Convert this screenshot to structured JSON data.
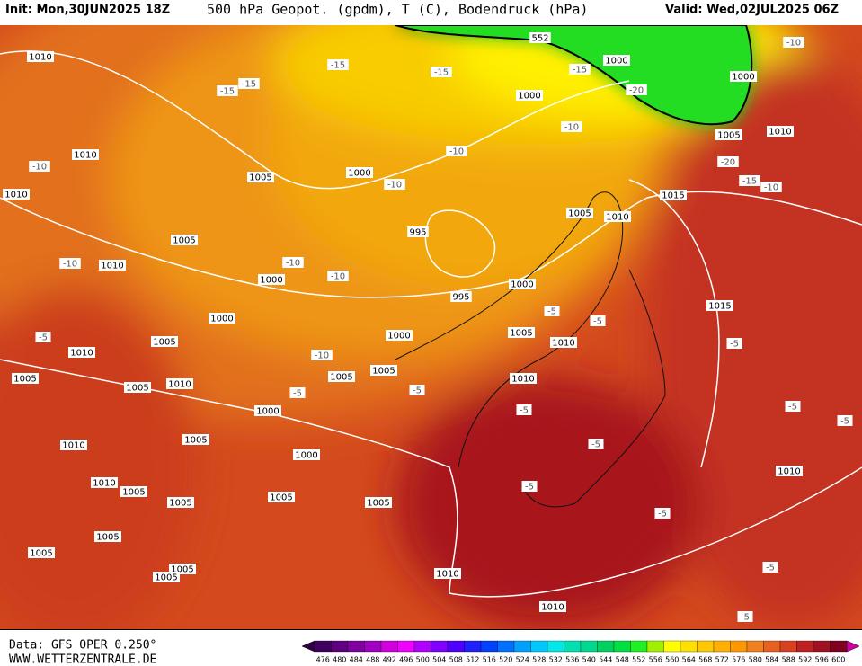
{
  "header": {
    "init": "Init: Mon,30JUN2025 18Z",
    "title": "500 hPa Geopot. (gpdm), T (C), Bodendruck (hPa)",
    "valid": "Valid: Wed,02JUL2025 06Z"
  },
  "footer": {
    "data": "Data: GFS OPER 0.250°",
    "site": "WWW.WETTERZENTRALE.DE"
  },
  "colorbar": {
    "labels": [
      "476",
      "480",
      "484",
      "488",
      "492",
      "496",
      "500",
      "504",
      "508",
      "512",
      "516",
      "520",
      "524",
      "528",
      "532",
      "536",
      "540",
      "544",
      "548",
      "552",
      "556",
      "560",
      "564",
      "568",
      "572",
      "576",
      "580",
      "584",
      "588",
      "592",
      "596",
      "600"
    ]
  },
  "pressure_labels": [
    "1010",
    "1010",
    "1010",
    "1005",
    "1000",
    "1005",
    "1000",
    "1000",
    "995",
    "995",
    "1000",
    "1000",
    "1000",
    "1000",
    "1005",
    "1010",
    "1015",
    "1005",
    "1010",
    "1015",
    "1005",
    "1010",
    "1000",
    "1005",
    "1005",
    "1010",
    "1005",
    "1010",
    "1005",
    "1005",
    "1010",
    "1000",
    "1000",
    "1005",
    "1005",
    "1005",
    "1010",
    "1010",
    "1005",
    "1005",
    "1005",
    "1005",
    "1005",
    "1005",
    "1010",
    "1010",
    "1010",
    "552",
    "1010"
  ],
  "temperature_labels": [
    "-15",
    "-15",
    "-15",
    "-15",
    "-15",
    "-20",
    "-10",
    "-10",
    "-10",
    "-10",
    "-10",
    "-10",
    "-10",
    "-10",
    "-20",
    "-15",
    "-10",
    "-5",
    "-5",
    "-5",
    "-10",
    "-5",
    "-5",
    "-5",
    "-5",
    "-5",
    "-5",
    "-5",
    "-5",
    "-5",
    "-5",
    "-5"
  ]
}
